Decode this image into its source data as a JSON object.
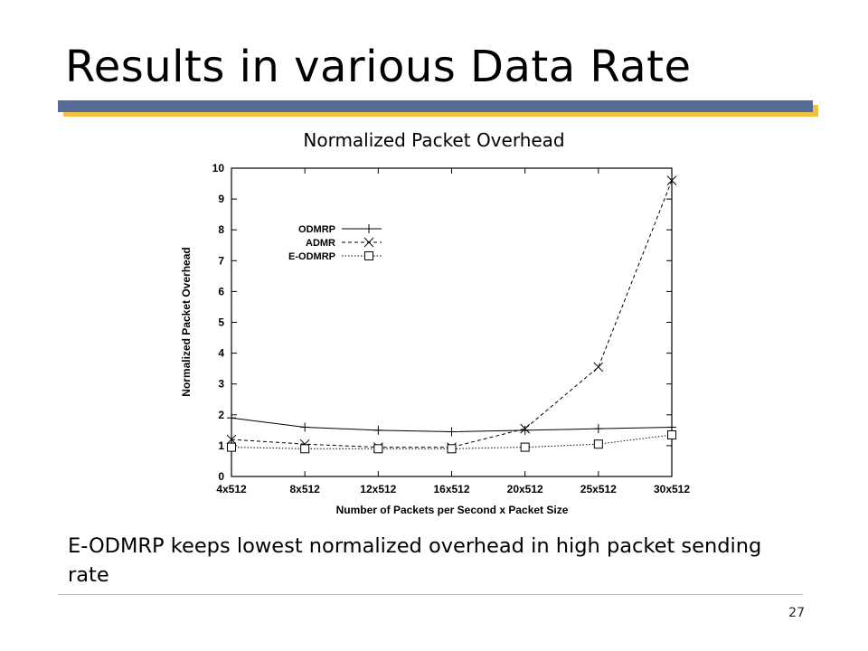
{
  "slide": {
    "title": "Results in various Data Rate",
    "caption": "E-ODMRP keeps lowest normalized overhead in high packet sending rate",
    "page_number": "27"
  },
  "chart_data": {
    "type": "line",
    "title": "Normalized Packet Overhead",
    "xlabel": "Number of Packets per Second x Packet Size",
    "ylabel": "Normalized Packet Overhead",
    "categories": [
      "4x512",
      "8x512",
      "12x512",
      "16x512",
      "20x512",
      "25x512",
      "30x512"
    ],
    "yticks": [
      "0",
      "1",
      "2",
      "3",
      "4",
      "5",
      "6",
      "7",
      "8",
      "9",
      "10"
    ],
    "ylim": [
      0,
      10
    ],
    "grid": false,
    "legend_position": "upper-left",
    "series": [
      {
        "name": "ODMRP",
        "marker": "plus",
        "line": "solid",
        "values": [
          1.9,
          1.6,
          1.5,
          1.45,
          1.5,
          1.55,
          1.6
        ]
      },
      {
        "name": "ADMR",
        "marker": "cross",
        "line": "dashed",
        "values": [
          1.2,
          1.05,
          0.95,
          0.95,
          1.55,
          3.55,
          9.6
        ]
      },
      {
        "name": "E-ODMRP",
        "marker": "square",
        "line": "dotted",
        "values": [
          0.95,
          0.9,
          0.9,
          0.9,
          0.95,
          1.05,
          1.35
        ]
      }
    ]
  }
}
